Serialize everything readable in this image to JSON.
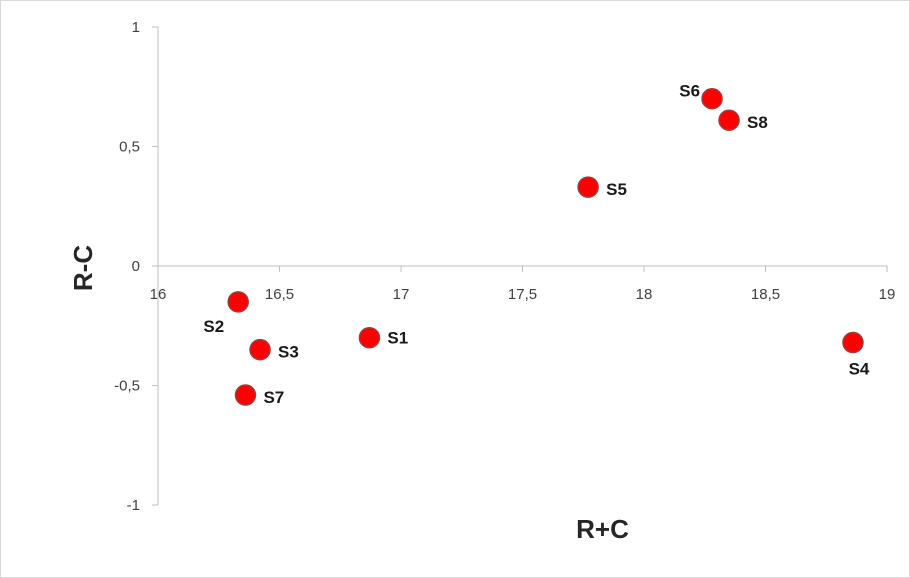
{
  "chart_data": {
    "type": "scatter",
    "title": "",
    "xlabel": "R+C",
    "ylabel": "R-C",
    "xlim": [
      16,
      19
    ],
    "ylim": [
      -1,
      1
    ],
    "x_ticks": [
      "16",
      "16,5",
      "17",
      "17,5",
      "18",
      "18,5",
      "19"
    ],
    "y_ticks": [
      "1",
      "0,5",
      "0",
      "-0,5",
      "-1"
    ],
    "grid": false,
    "legend": "none",
    "marker_color": "#ff0000",
    "marker_edge": "#9e3a3a",
    "points": [
      {
        "label": "S1",
        "x": 16.87,
        "y": -0.3
      },
      {
        "label": "S2",
        "x": 16.33,
        "y": -0.15
      },
      {
        "label": "S3",
        "x": 16.42,
        "y": -0.35
      },
      {
        "label": "S4",
        "x": 18.86,
        "y": -0.32
      },
      {
        "label": "S5",
        "x": 17.77,
        "y": 0.33
      },
      {
        "label": "S6",
        "x": 18.28,
        "y": 0.7
      },
      {
        "label": "S7",
        "x": 16.36,
        "y": -0.54
      },
      {
        "label": "S8",
        "x": 18.35,
        "y": 0.61
      }
    ]
  }
}
